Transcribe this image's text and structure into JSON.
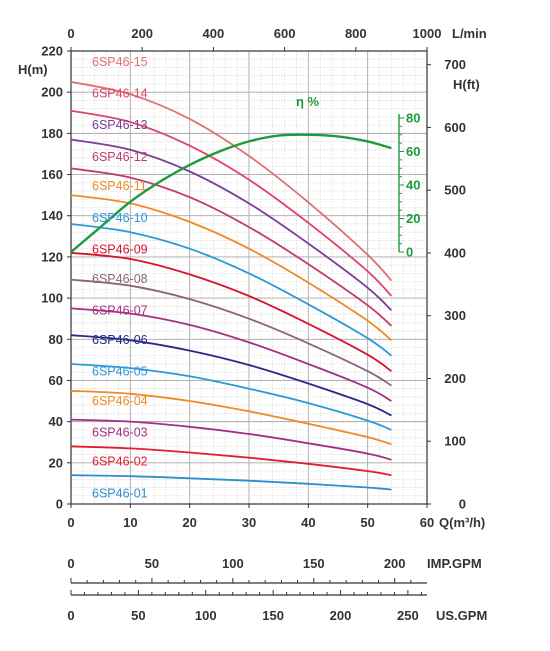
{
  "chart_data": {
    "type": "line",
    "x_axis": {
      "label": "Q(m³/h)",
      "range": [
        0,
        60
      ],
      "ticks": [
        "0",
        "10",
        "20",
        "30",
        "40",
        "50",
        "60"
      ]
    },
    "x_top_axis": {
      "label": "L/min",
      "ticks": [
        "0",
        "200",
        "400",
        "600",
        "800",
        "1000"
      ]
    },
    "imp_gpm_axis": {
      "label": "IMP.GPM",
      "ticks": [
        "0",
        "50",
        "100",
        "150",
        "200"
      ]
    },
    "us_gpm_axis": {
      "label": "US.GPM",
      "ticks": [
        "0",
        "50",
        "100",
        "150",
        "200",
        "250"
      ]
    },
    "y_axis": {
      "label": "H(m)",
      "range": [
        0,
        220
      ],
      "ticks": [
        "0",
        "20",
        "40",
        "60",
        "80",
        "100",
        "120",
        "140",
        "160",
        "180",
        "200",
        "220"
      ]
    },
    "y_right_axis": {
      "label": "H(ft)",
      "ticks": [
        "0",
        "100",
        "200",
        "300",
        "400",
        "500",
        "600",
        "700"
      ]
    },
    "efficiency_axis": {
      "label": "η %",
      "ticks": [
        "0",
        "20",
        "40",
        "60",
        "80"
      ],
      "range": [
        0,
        80
      ],
      "color": "#1e9a3e"
    },
    "grid": true,
    "series": [
      {
        "name": "6SP46-01",
        "color": "#2b8fd0",
        "x": [
          0,
          10,
          20,
          30,
          40,
          50,
          54
        ],
        "y": [
          14,
          13.5,
          12.5,
          11.3,
          9.8,
          8,
          7
        ]
      },
      {
        "name": "6SP46-02",
        "color": "#e31f2d",
        "x": [
          0,
          10,
          20,
          30,
          40,
          50,
          54
        ],
        "y": [
          28,
          27,
          25,
          22.5,
          19.5,
          16,
          14
        ]
      },
      {
        "name": "6SP46-03",
        "color": "#a52f86",
        "x": [
          0,
          10,
          20,
          30,
          40,
          50,
          54
        ],
        "y": [
          41,
          40,
          37.5,
          34,
          29.5,
          24.5,
          21.5
        ]
      },
      {
        "name": "6SP46-04",
        "color": "#f08a24",
        "x": [
          0,
          10,
          20,
          30,
          40,
          50,
          54
        ],
        "y": [
          55,
          53.5,
          50,
          45,
          39,
          32.5,
          29
        ]
      },
      {
        "name": "6SP46-05",
        "color": "#2b9ad6",
        "x": [
          0,
          10,
          20,
          30,
          40,
          50,
          54
        ],
        "y": [
          68,
          66,
          62,
          56,
          49,
          40.5,
          36
        ]
      },
      {
        "name": "6SP46-06",
        "color": "#2a2a86",
        "x": [
          0,
          10,
          20,
          30,
          40,
          50,
          54
        ],
        "y": [
          82,
          79.5,
          74.5,
          67.5,
          58.5,
          48.5,
          43
        ]
      },
      {
        "name": "6SP46-07",
        "color": "#a52f86",
        "x": [
          0,
          10,
          20,
          30,
          40,
          50,
          54
        ],
        "y": [
          95,
          92.5,
          87,
          78.5,
          68,
          56.5,
          50
        ]
      },
      {
        "name": "6SP46-08",
        "color": "#8a6578",
        "x": [
          0,
          10,
          20,
          30,
          40,
          50,
          54
        ],
        "y": [
          109,
          106,
          99.5,
          90,
          78,
          64.5,
          57.5
        ]
      },
      {
        "name": "6SP46-09",
        "color": "#d6132a",
        "x": [
          0,
          10,
          20,
          30,
          40,
          50,
          54
        ],
        "y": [
          122,
          119,
          111.5,
          101,
          87.5,
          72.5,
          64.5
        ]
      },
      {
        "name": "6SP46-10",
        "color": "#2b9ad6",
        "x": [
          0,
          10,
          20,
          30,
          40,
          50,
          54
        ],
        "y": [
          136,
          132,
          124,
          112,
          97,
          80.5,
          72
        ]
      },
      {
        "name": "6SP46-11",
        "color": "#f08a24",
        "x": [
          0,
          10,
          20,
          30,
          40,
          50,
          54
        ],
        "y": [
          150,
          146,
          137,
          124,
          107.5,
          89,
          79.5
        ]
      },
      {
        "name": "6SP46-12",
        "color": "#c23a6e",
        "x": [
          0,
          10,
          20,
          30,
          40,
          50,
          54
        ],
        "y": [
          163,
          158.5,
          149,
          134.5,
          116.5,
          96.5,
          86.5
        ]
      },
      {
        "name": "6SP46-13",
        "color": "#7a3f96",
        "x": [
          0,
          10,
          20,
          30,
          40,
          50,
          54
        ],
        "y": [
          177,
          172,
          161.5,
          146,
          126.5,
          105,
          94
        ]
      },
      {
        "name": "6SP46-14",
        "color": "#e0456a",
        "x": [
          0,
          10,
          20,
          30,
          40,
          50,
          54
        ],
        "y": [
          191,
          185.5,
          174,
          157.5,
          136.5,
          113,
          101
        ]
      },
      {
        "name": "6SP46-15",
        "color": "#e07070",
        "x": [
          0,
          10,
          20,
          30,
          40,
          50,
          54
        ],
        "y": [
          205,
          199,
          187,
          169,
          146.5,
          121,
          108.5
        ]
      }
    ],
    "efficiency": {
      "color": "#1e9a3e",
      "x": [
        0,
        5,
        10,
        15,
        20,
        25,
        30,
        35,
        40,
        45,
        50,
        54
      ],
      "y": [
        0,
        15,
        30,
        42,
        52,
        60,
        66,
        69.5,
        70,
        69,
        66,
        62
      ]
    }
  }
}
